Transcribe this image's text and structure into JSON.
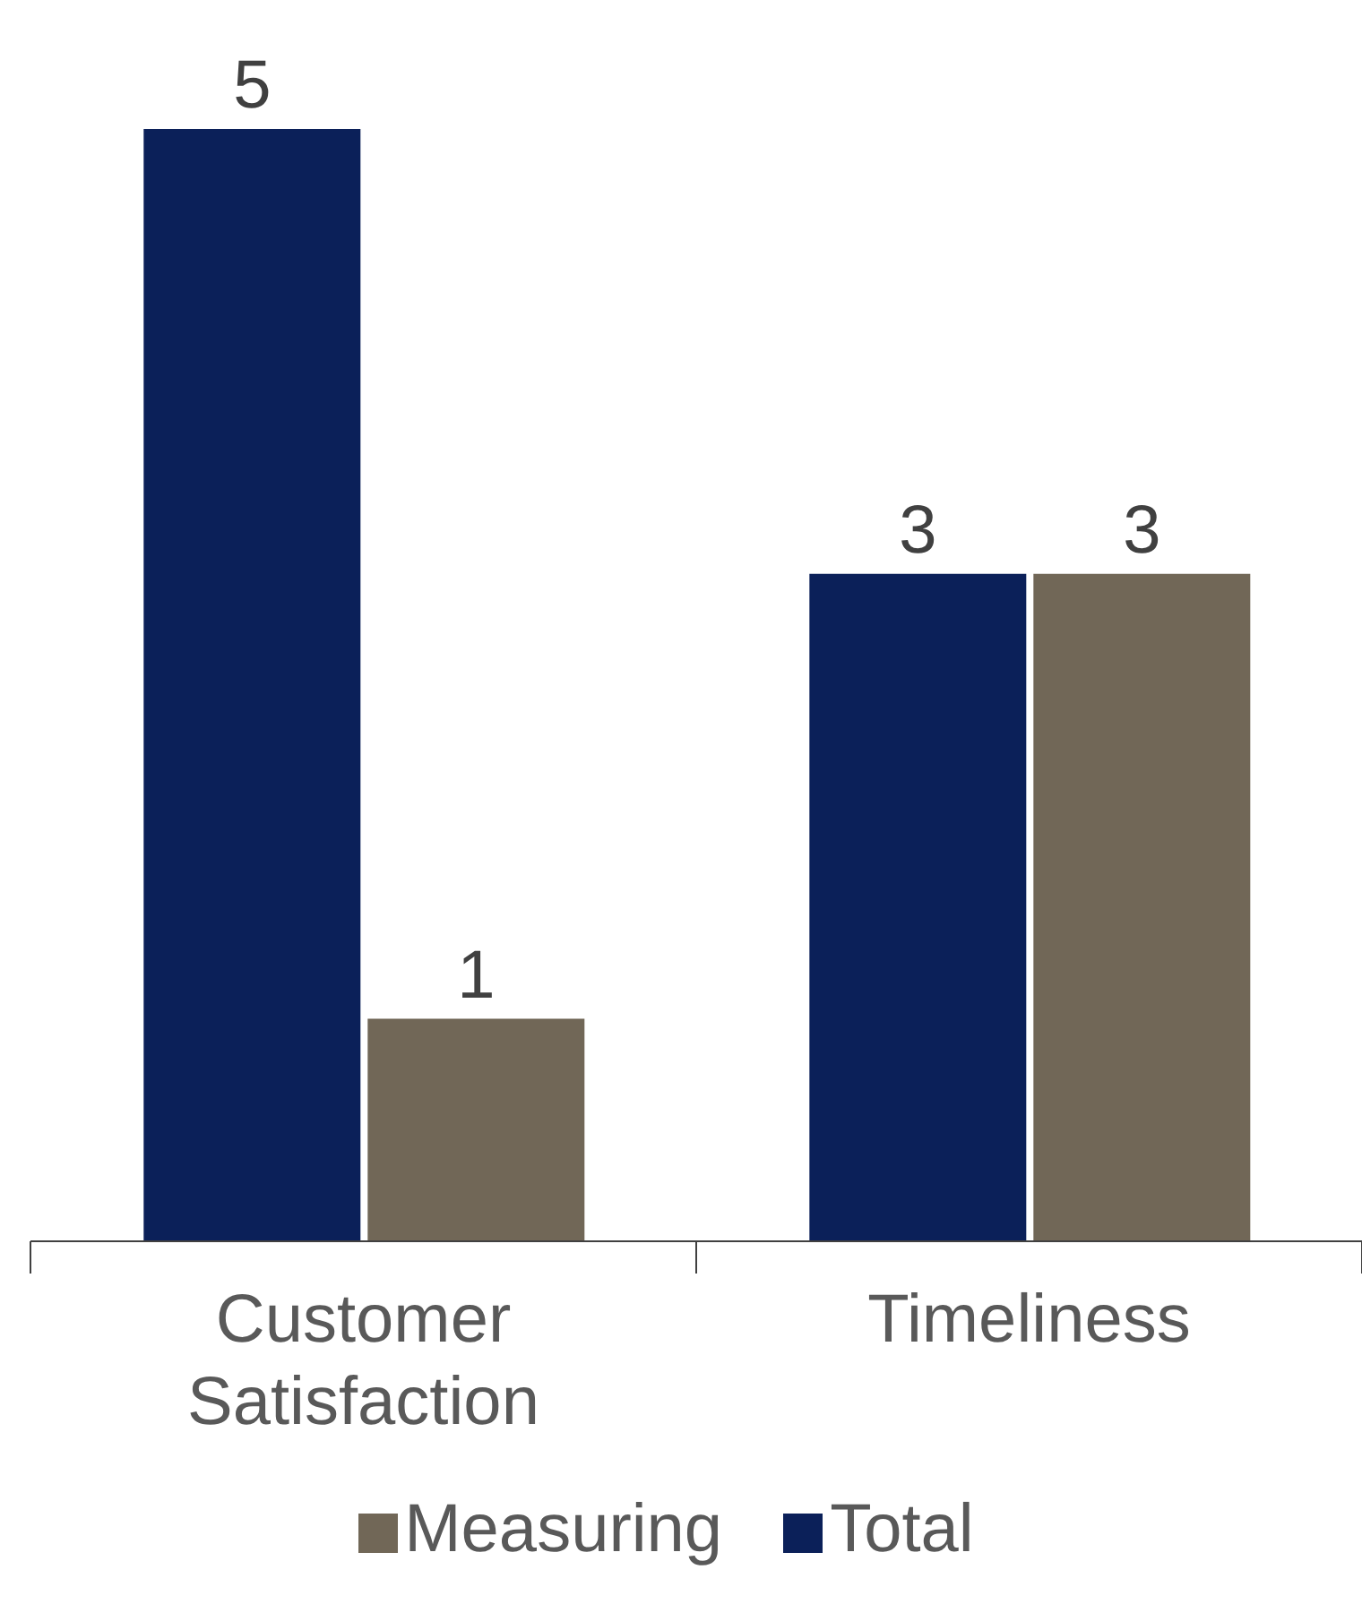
{
  "chart_data": {
    "type": "bar",
    "categories": [
      "Customer Satisfaction",
      "Timeliness"
    ],
    "series": [
      {
        "name": "Total",
        "color": "#0b2059",
        "values": [
          5,
          3
        ]
      },
      {
        "name": "Measuring",
        "color": "#716757",
        "values": [
          1,
          3
        ]
      }
    ],
    "data_labels": true,
    "legend": "bottom"
  }
}
